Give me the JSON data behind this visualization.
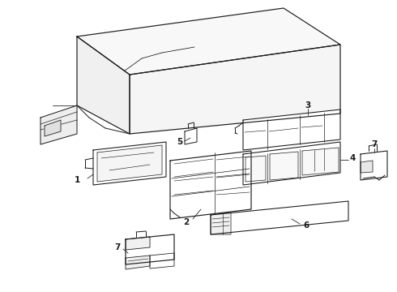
{
  "bg_color": "#ffffff",
  "line_color": "#1a1a1a",
  "line_width": 0.7,
  "label_fontsize": 7.5
}
